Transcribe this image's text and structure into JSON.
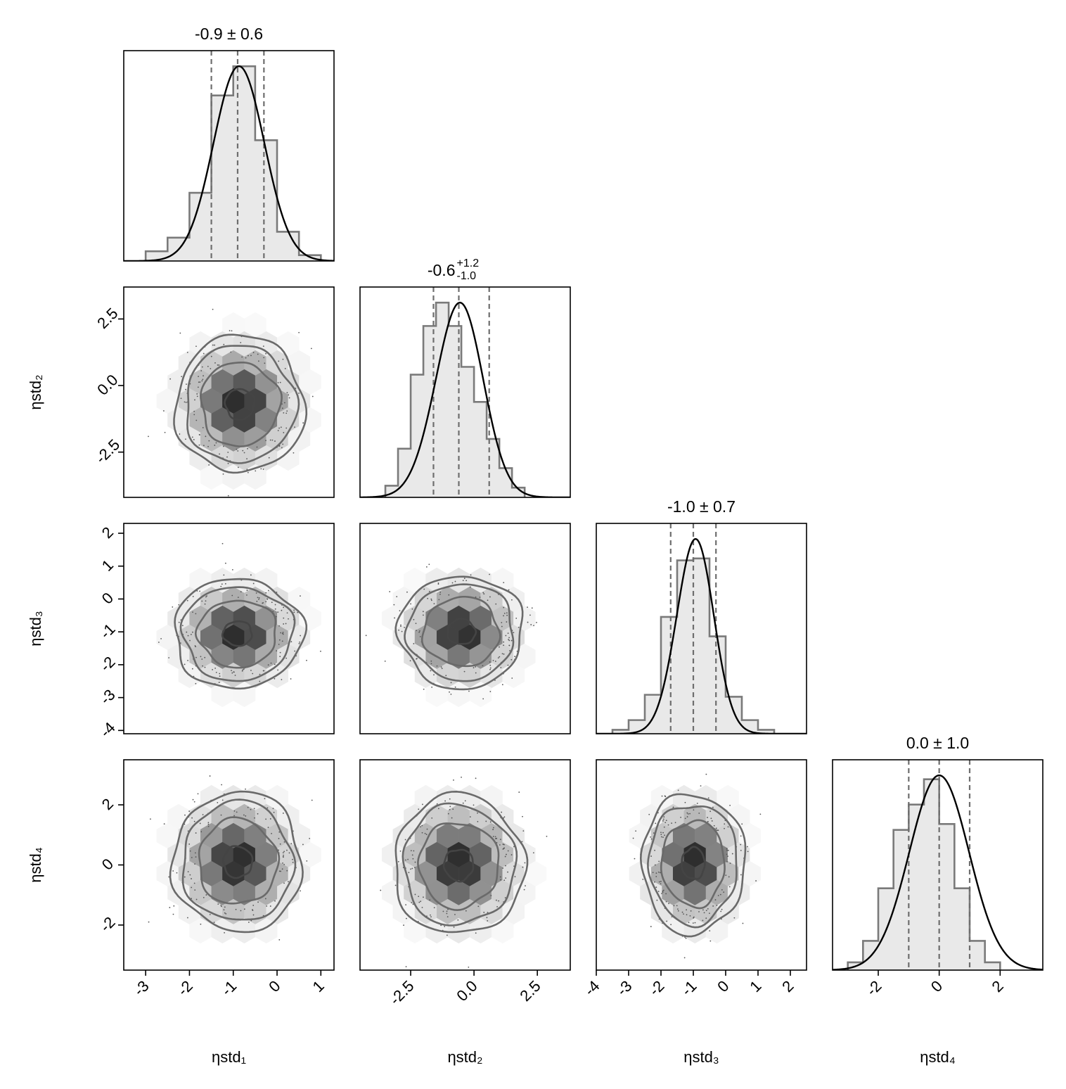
{
  "chart_data": {
    "type": "corner",
    "parameters": [
      "ηstd₁",
      "ηstd₂",
      "ηstd₃",
      "ηstd₄"
    ],
    "marginals": [
      {
        "param": "ηstd₁",
        "title": "-0.9 ± 0.6",
        "title_main": "-0.9 ± 0.6",
        "title_sup": "",
        "title_sub": "",
        "median": -0.9,
        "lower": -1.5,
        "upper": -0.3,
        "xlim": [
          -3.5,
          1.3
        ],
        "peak": 1.0,
        "bins": {
          "start": -3.0,
          "width": 0.5,
          "counts": [
            0.05,
            0.12,
            0.35,
            0.85,
            1.0,
            0.62,
            0.15,
            0.03
          ]
        },
        "kde": {
          "mu": -0.87,
          "sigma": 0.58,
          "skew": 0.0
        }
      },
      {
        "param": "ηstd₂",
        "title": "-0.6 +1.2 -1.0",
        "title_main": "-0.6",
        "title_sup": "+1.2",
        "title_sub": "-1.0",
        "median": -0.6,
        "lower": -1.6,
        "upper": 0.6,
        "xlim": [
          -4.5,
          3.8
        ],
        "peak": 1.0,
        "bins": {
          "start": -3.5,
          "width": 0.5,
          "counts": [
            0.06,
            0.25,
            0.63,
            0.88,
            1.0,
            0.88,
            0.67,
            0.49,
            0.3,
            0.15,
            0.05
          ]
        },
        "kde": {
          "mu": -0.7,
          "sigma": 0.95,
          "skew": 0.45
        }
      },
      {
        "param": "ηstd₃",
        "title": "-1.0 ± 0.7",
        "title_main": "-1.0 ± 0.7",
        "title_sup": "",
        "title_sub": "",
        "median": -1.0,
        "lower": -1.7,
        "upper": -0.3,
        "xlim": [
          -4.0,
          2.5
        ],
        "peak": 1.0,
        "bins": {
          "start": -3.5,
          "width": 0.5,
          "counts": [
            0.02,
            0.07,
            0.2,
            0.6,
            0.89,
            0.9,
            0.5,
            0.19,
            0.07,
            0.02
          ]
        },
        "kde": {
          "mu": -1.0,
          "sigma": 0.58,
          "skew": 0.35
        }
      },
      {
        "param": "ηstd₄",
        "title": "0.0 ± 1.0",
        "title_main": "0.0 ± 1.0",
        "title_sup": "",
        "title_sub": "",
        "median": 0.0,
        "lower": -1.0,
        "upper": 1.0,
        "xlim": [
          -3.5,
          3.4
        ],
        "peak": 1.0,
        "bins": {
          "start": -3.0,
          "width": 0.5,
          "counts": [
            0.04,
            0.15,
            0.42,
            0.72,
            0.85,
            0.98,
            0.75,
            0.42,
            0.15,
            0.04
          ]
        },
        "kde": {
          "mu": 0.0,
          "sigma": 0.98,
          "skew": 0.0
        }
      }
    ],
    "joints": [
      {
        "row": 1,
        "col": 0,
        "x": "ηstd₁",
        "y": "ηstd₂",
        "xlim": [
          -3.5,
          1.3
        ],
        "ylim": [
          -4.2,
          3.7
        ],
        "mean": [
          -0.85,
          -0.7
        ],
        "sigma": [
          0.6,
          1.05
        ],
        "contours": [
          0.15,
          0.42,
          0.7,
          0.9
        ]
      },
      {
        "row": 2,
        "col": 0,
        "x": "ηstd₁",
        "y": "ηstd₃",
        "xlim": [
          -3.5,
          1.3
        ],
        "ylim": [
          -4.1,
          2.3
        ],
        "mean": [
          -0.9,
          -1.05
        ],
        "sigma": [
          0.6,
          0.68
        ],
        "contours": [
          0.1,
          0.42,
          0.7,
          0.9
        ]
      },
      {
        "row": 2,
        "col": 1,
        "x": "ηstd₂",
        "y": "ηstd₃",
        "xlim": [
          -4.5,
          3.8
        ],
        "ylim": [
          -4.1,
          2.3
        ],
        "mean": [
          -0.5,
          -1.0
        ],
        "sigma": [
          1.0,
          0.7
        ],
        "contours": [
          0.1,
          0.42,
          0.7,
          0.9
        ]
      },
      {
        "row": 3,
        "col": 0,
        "x": "ηstd₁",
        "y": "ηstd₄",
        "xlim": [
          -3.5,
          1.3
        ],
        "ylim": [
          -3.5,
          3.5
        ],
        "mean": [
          -0.9,
          0.1
        ],
        "sigma": [
          0.6,
          0.95
        ],
        "contours": [
          0.12,
          0.42,
          0.7,
          0.9
        ]
      },
      {
        "row": 3,
        "col": 1,
        "x": "ηstd₂",
        "y": "ηstd₄",
        "xlim": [
          -4.5,
          3.8
        ],
        "ylim": [
          -3.5,
          3.5
        ],
        "mean": [
          -0.6,
          0.0
        ],
        "sigma": [
          1.05,
          0.95
        ],
        "contours": [
          0.12,
          0.42,
          0.7,
          0.9
        ]
      },
      {
        "row": 3,
        "col": 2,
        "x": "ηstd₃",
        "y": "ηstd₄",
        "xlim": [
          -4.0,
          2.5
        ],
        "ylim": [
          -3.5,
          3.5
        ],
        "mean": [
          -1.0,
          0.05
        ],
        "sigma": [
          0.65,
          0.95
        ],
        "contours": [
          0.15,
          0.42,
          0.7,
          0.9
        ]
      }
    ],
    "axes": {
      "x_ticks": [
        [
          "-3",
          "-2",
          "-1",
          "0",
          "1"
        ],
        [
          "-2.5",
          "0.0",
          "2.5"
        ],
        [
          "-4",
          "-3",
          "-2",
          "-1",
          "0",
          "1",
          "2"
        ],
        [
          "-2",
          "0",
          "2"
        ]
      ],
      "x_tick_values": [
        [
          -3,
          -2,
          -1,
          0,
          1
        ],
        [
          -2.5,
          0.0,
          2.5
        ],
        [
          -4,
          -3,
          -2,
          -1,
          0,
          1,
          2
        ],
        [
          -2,
          0,
          2
        ]
      ],
      "y_labels": {
        "1": "ηstd₂",
        "2": "ηstd₃",
        "3": "ηstd₄"
      },
      "y_ticks": {
        "1": [
          "-2.5",
          "0.0",
          "2.5"
        ],
        "2": [
          "-4",
          "-3",
          "-2",
          "-1",
          "0",
          "1",
          "2"
        ],
        "3": [
          "-2",
          "0",
          "2"
        ]
      },
      "y_tick_values": {
        "1": [
          -2.5,
          0.0,
          2.5
        ],
        "2": [
          -4,
          -3,
          -2,
          -1,
          0,
          1,
          2
        ],
        "3": [
          -2,
          0,
          2
        ]
      },
      "x_labels": [
        "ηstd₁",
        "ηstd₂",
        "ηstd₃",
        "ηstd₄"
      ]
    },
    "colors": {
      "hist_fill": "#e9e9e9",
      "hist_edge": "#7a7a7a",
      "kde_line": "#000000",
      "quantile_line": "#6e6e6e",
      "contour_inner": "#444444",
      "contour_outer": "#6a6a6a",
      "density_max": "#2e2e2e",
      "scatter": "#555555"
    }
  }
}
